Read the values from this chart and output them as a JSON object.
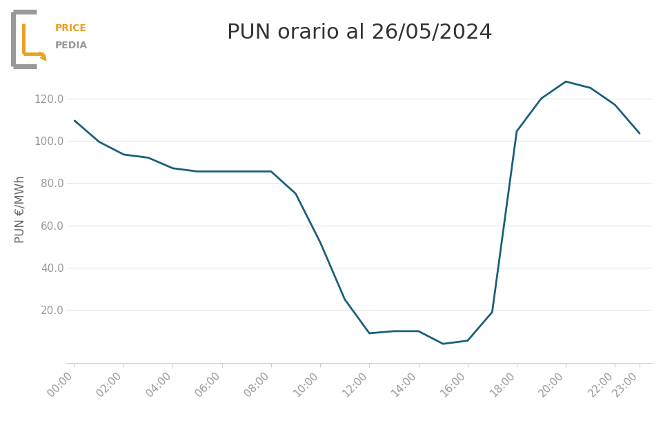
{
  "title": "PUN orario al 26/05/2024",
  "ylabel": "PUN €/MWh",
  "line_color": "#1a5f7a",
  "line_width": 2.0,
  "background_color": "#ffffff",
  "hours": [
    0,
    1,
    2,
    3,
    4,
    5,
    6,
    7,
    8,
    9,
    10,
    11,
    12,
    13,
    14,
    15,
    16,
    17,
    18,
    19,
    20,
    21,
    22,
    23
  ],
  "values": [
    109.5,
    99.5,
    93.5,
    92.0,
    87.0,
    85.5,
    85.5,
    85.5,
    85.5,
    75.0,
    52.0,
    25.0,
    9.0,
    10.0,
    10.0,
    4.0,
    5.5,
    19.0,
    104.5,
    120.0,
    128.0,
    125.0,
    117.0,
    103.5
  ],
  "xtick_labels": [
    "00:00",
    "02:00",
    "04:00",
    "06:00",
    "08:00",
    "10:00",
    "12:00",
    "14:00",
    "16:00",
    "18:00",
    "20:00",
    "22:00",
    "23:00"
  ],
  "xtick_positions": [
    0,
    2,
    4,
    6,
    8,
    10,
    12,
    14,
    16,
    18,
    20,
    22,
    23
  ],
  "ytick_values": [
    20.0,
    40.0,
    60.0,
    80.0,
    100.0,
    120.0
  ],
  "ylim": [
    -5,
    140
  ],
  "xlim": [
    -0.3,
    23.5
  ],
  "title_fontsize": 22,
  "tick_fontsize": 11,
  "ylabel_fontsize": 12,
  "logo_color_orange": "#E8A020",
  "logo_color_gray": "#999999"
}
